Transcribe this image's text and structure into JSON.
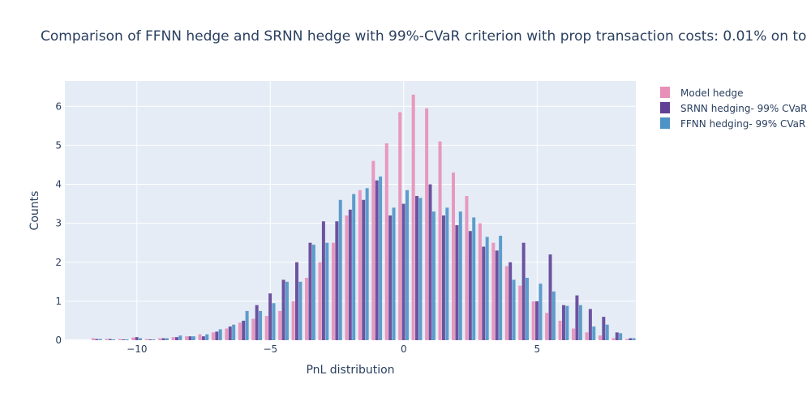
{
  "chart_data": {
    "type": "bar",
    "title": "Comparison of FFNN hedge and SRNN hedge with 99%-CVaR criterion with prop transaction costs: 0.01% on to",
    "xlabel": "PnL distribution",
    "ylabel": "Counts",
    "xlim": [
      -12.7,
      8.7
    ],
    "ylim": [
      0,
      6.65
    ],
    "x_ticks": [
      -10,
      -5,
      0,
      5
    ],
    "y_ticks": [
      0,
      1,
      2,
      3,
      4,
      5,
      6
    ],
    "grid": true,
    "legend_position": "top-right",
    "colors": {
      "plot_bg": "#e5ecf6",
      "grid": "#ffffff",
      "model": "#e88fb8",
      "srnn": "#5f4196",
      "ffnn": "#4e93c6"
    },
    "bin_width": 0.5,
    "bin_centers": [
      -11.5,
      -11.0,
      -10.5,
      -10.0,
      -9.5,
      -9.0,
      -8.5,
      -8.0,
      -7.5,
      -7.0,
      -6.5,
      -6.0,
      -5.5,
      -5.0,
      -4.5,
      -4.0,
      -3.5,
      -3.0,
      -2.5,
      -2.0,
      -1.5,
      -1.0,
      -0.5,
      0.0,
      0.5,
      1.0,
      1.5,
      2.0,
      2.5,
      3.0,
      3.5,
      4.0,
      4.5,
      5.0,
      5.5,
      6.0,
      6.5,
      7.0,
      7.5,
      8.0,
      8.5
    ],
    "series": [
      {
        "name": "Model hedge",
        "values": [
          0.05,
          0.03,
          0.03,
          0.07,
          0.03,
          0.05,
          0.08,
          0.1,
          0.15,
          0.2,
          0.3,
          0.45,
          0.55,
          0.62,
          0.75,
          1.0,
          1.6,
          2.0,
          2.5,
          3.2,
          3.85,
          4.6,
          5.05,
          5.85,
          6.3,
          5.95,
          5.1,
          4.3,
          3.7,
          3.0,
          2.5,
          1.9,
          1.4,
          1.0,
          0.7,
          0.5,
          0.3,
          0.2,
          0.12,
          0.05,
          0.03
        ]
      },
      {
        "name": "SRNN hedging- 99% CVaR",
        "values": [
          0.03,
          0.03,
          0.02,
          0.08,
          0.02,
          0.05,
          0.08,
          0.1,
          0.1,
          0.22,
          0.35,
          0.5,
          0.9,
          1.2,
          1.55,
          2.0,
          2.5,
          3.05,
          3.05,
          3.35,
          3.6,
          4.1,
          3.2,
          3.5,
          3.7,
          4.0,
          3.2,
          2.95,
          2.8,
          2.4,
          2.3,
          2.0,
          2.5,
          1.0,
          2.2,
          0.9,
          1.15,
          0.8,
          0.6,
          0.2,
          0.05
        ]
      },
      {
        "name": "FFNN hedging- 99% CVaR",
        "values": [
          0.03,
          0.02,
          0.02,
          0.05,
          0.02,
          0.05,
          0.12,
          0.1,
          0.15,
          0.28,
          0.4,
          0.75,
          0.75,
          0.95,
          1.5,
          1.5,
          2.45,
          2.5,
          3.6,
          3.75,
          3.9,
          4.2,
          3.4,
          3.85,
          3.65,
          3.3,
          3.4,
          3.3,
          3.15,
          2.65,
          2.68,
          1.55,
          1.6,
          1.45,
          1.25,
          0.88,
          0.9,
          0.35,
          0.4,
          0.18,
          0.05
        ]
      }
    ]
  }
}
